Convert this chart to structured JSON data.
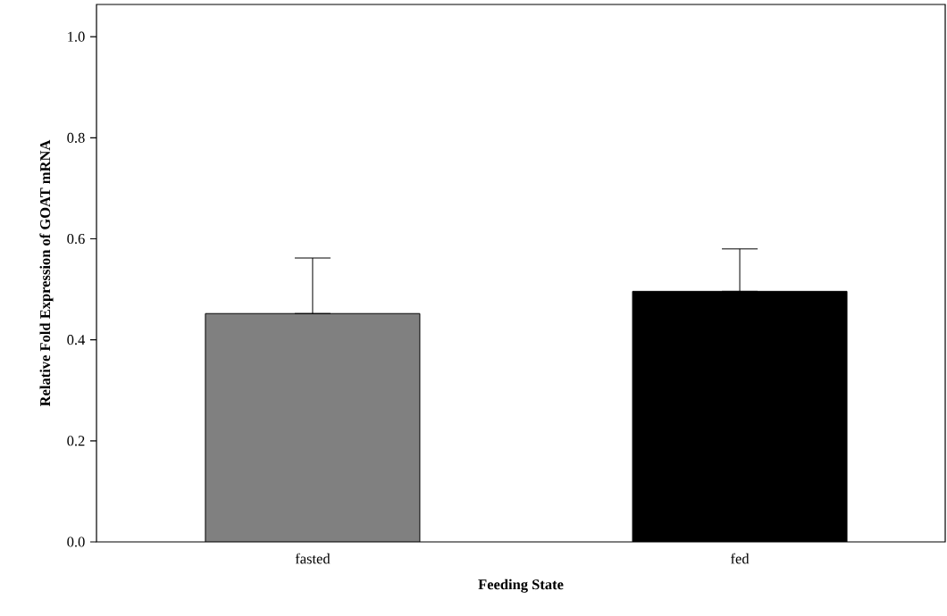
{
  "chart_data": {
    "type": "bar",
    "xlabel": "Feeding State",
    "ylabel": "Relative Fold Expression of GOAT mRNA",
    "categories": [
      "fasted",
      "fed"
    ],
    "values": [
      0.452,
      0.496
    ],
    "colors": [
      "#808080",
      "#000000"
    ],
    "errors": [
      [
        0.452,
        0.562
      ],
      [
        0.496,
        0.58
      ]
    ],
    "ylim": [
      0,
      1.064
    ],
    "yticks": [
      {
        "value": 0,
        "label": "0.0"
      },
      0.2,
      0.4,
      0.6,
      0.8,
      {
        "value": 1,
        "label": "1.0"
      }
    ]
  }
}
